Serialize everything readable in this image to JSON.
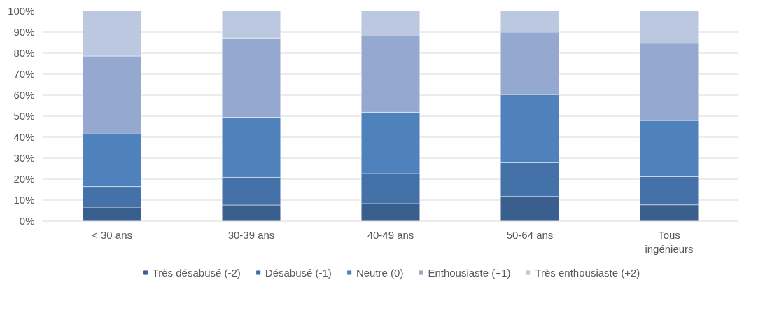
{
  "chart_data": {
    "type": "bar",
    "stacked": true,
    "categories": [
      "< 30 ans",
      "30-39 ans",
      "40-49 ans",
      "50-64 ans",
      "Tous ingénieurs"
    ],
    "series": [
      {
        "name": "Très désabusé (-2)",
        "color": "#3a5f8f",
        "values": [
          6.5,
          7.5,
          8.2,
          11.6,
          7.6
        ]
      },
      {
        "name": "Désabusé (-1)",
        "color": "#4472a8",
        "values": [
          9.8,
          13.2,
          14.3,
          16.1,
          13.4
        ]
      },
      {
        "name": "Neutre (0)",
        "color": "#4f81bd",
        "values": [
          25.1,
          28.6,
          29.2,
          32.5,
          26.8
        ]
      },
      {
        "name": "Enthousiaste (+1)",
        "color": "#95a9d0",
        "values": [
          37.1,
          37.8,
          36.3,
          29.7,
          36.8
        ]
      },
      {
        "name": "Très enthousiaste (+2)",
        "color": "#bcc8e0",
        "values": [
          21.5,
          12.9,
          12.0,
          10.1,
          15.4
        ]
      }
    ],
    "ylim": [
      0,
      100
    ],
    "yticks": [
      {
        "value": 0,
        "label": "0%"
      },
      {
        "value": 10,
        "label": "10%"
      },
      {
        "value": 20,
        "label": "20%"
      },
      {
        "value": 30,
        "label": "30%"
      },
      {
        "value": 40,
        "label": "40%"
      },
      {
        "value": 50,
        "label": "50%"
      },
      {
        "value": 60,
        "label": "60%"
      },
      {
        "value": 70,
        "label": "70%"
      },
      {
        "value": 80,
        "label": "80%"
      },
      {
        "value": 90,
        "label": "90%"
      },
      {
        "value": 100,
        "label": "100%"
      }
    ],
    "grid": "y",
    "legend": "bottom"
  }
}
